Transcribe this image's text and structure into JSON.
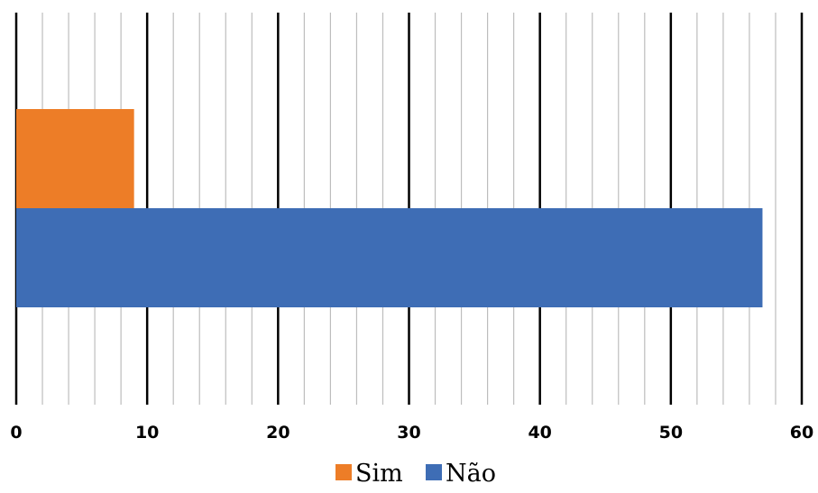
{
  "chart_data": {
    "type": "bar",
    "orientation": "horizontal",
    "title": "",
    "xlabel": "",
    "ylabel": "",
    "xlim": [
      0,
      60
    ],
    "major_ticks": [
      0,
      10,
      20,
      30,
      40,
      50,
      60
    ],
    "tick_labels": [
      "0",
      "10",
      "20",
      "30",
      "40",
      "50",
      "60"
    ],
    "minor_step": 2,
    "grid": true,
    "legend_position": "bottom",
    "series": [
      {
        "name": "Sim",
        "values": [
          9
        ],
        "color": "#ed7d27"
      },
      {
        "name": "Não",
        "values": [
          57
        ],
        "color": "#3e6db5"
      }
    ]
  }
}
